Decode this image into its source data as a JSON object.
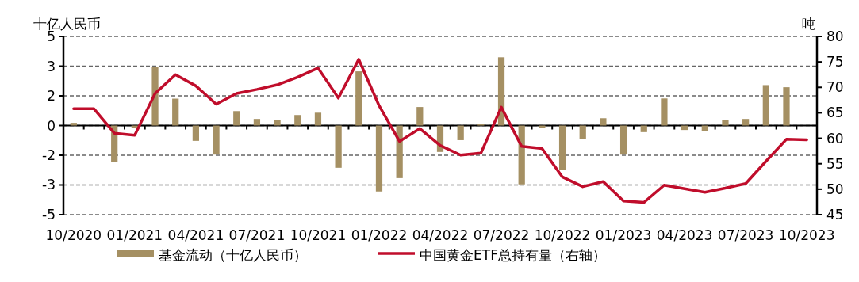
{
  "chart_data": {
    "type": "bar",
    "ylabel": "十亿人民币",
    "y2label": "吨",
    "categories": [
      "10/2020",
      null,
      null,
      "01/2021",
      null,
      null,
      "04/2021",
      null,
      null,
      "07/2021",
      null,
      null,
      "10/2021",
      null,
      null,
      "01/2022",
      null,
      null,
      "04/2022",
      null,
      null,
      "07/2022",
      null,
      null,
      "10/2022",
      null,
      null,
      "01/2023",
      null,
      null,
      "04/2023",
      null,
      null,
      "07/2023",
      null,
      null,
      "10/2023"
    ],
    "series": [
      {
        "name": "基金流动（十亿人民币）",
        "color": "#a59063",
        "values": [
          0.15,
          0,
          -2.04,
          -0.15,
          3.3,
          1.51,
          -0.86,
          -1.63,
          0.81,
          0.37,
          0.32,
          0.59,
          0.72,
          -2.37,
          3.04,
          -3.7,
          -2.95,
          1.04,
          -1.48,
          -0.82,
          0.1,
          3.83,
          -3.3,
          -0.15,
          -2.49,
          -0.77,
          0.41,
          -1.63,
          -0.37,
          1.52,
          -0.25,
          -0.33,
          0.32,
          0.37,
          2.27,
          2.15,
          null
        ]
      },
      {
        "name": "中国黄金ETF总持有量（右轴）",
        "type": "line",
        "axis": "y2",
        "color": "#c00d2b",
        "values": [
          65.8,
          65.8,
          61.0,
          60.6,
          68.8,
          72.5,
          70.3,
          66.7,
          68.8,
          69.6,
          70.5,
          72.0,
          73.8,
          67.9,
          75.5,
          66.4,
          59.4,
          61.9,
          58.6,
          56.7,
          57.1,
          66.1,
          58.4,
          58.0,
          52.4,
          50.5,
          51.5,
          47.7,
          47.4,
          50.8,
          50.1,
          49.4,
          50.2,
          51.1,
          55.5,
          59.8,
          59.7
        ]
      }
    ],
    "ylim": [
      -5,
      5
    ],
    "yticks": [
      -5,
      {
        "value": -3.333,
        "label": "-3"
      },
      {
        "value": -1.667,
        "label": "-2"
      },
      0,
      {
        "value": 1.667,
        "label": "2"
      },
      {
        "value": 3.333,
        "label": "3"
      },
      5
    ],
    "y2lim": [
      45,
      80
    ],
    "y2ticks": [
      45,
      50,
      55,
      60,
      65,
      70,
      75,
      80
    ],
    "grid": "y",
    "legend": "bottom"
  }
}
